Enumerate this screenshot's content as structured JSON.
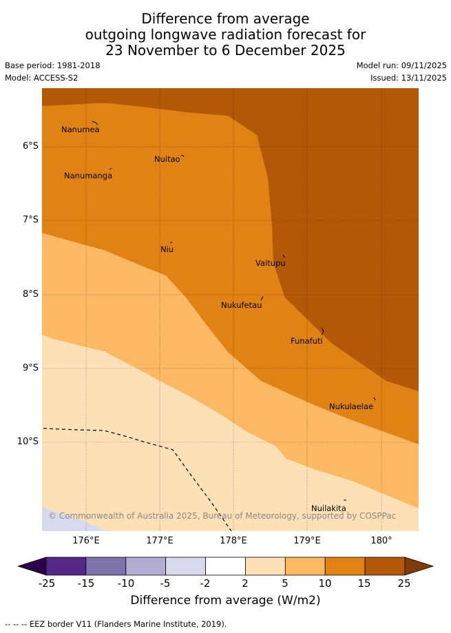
{
  "title": {
    "line1": "Difference from average",
    "line2": "outgoing longwave radiation forecast for",
    "line3": "23 November to 6 December 2025"
  },
  "meta": {
    "base_period": "Base period: 1981-2018",
    "model": "Model: ACCESS-S2",
    "model_run": "Model run: 09/11/2025",
    "issued": "Issued: 13/11/2025"
  },
  "map": {
    "lat_labels": [
      "6°S",
      "7°S",
      "8°S",
      "9°S",
      "10°S"
    ],
    "lon_labels": [
      "176°E",
      "177°E",
      "178°E",
      "179°E",
      "180°"
    ],
    "places": [
      "Nanumea",
      "Nuitao",
      "Nanumanga",
      "Niu",
      "Vaitupu",
      "Nukufetau",
      "Funafuti",
      "Nukulaelae",
      "Nuilakita"
    ],
    "copyright": "© Commonwealth of Australia 2025, Bureau of Meteorology, supported by COSPPac",
    "colors": {
      "c15_25": "#b35806",
      "c10_15": "#e08214",
      "c5_10": "#fdb863",
      "c2_5": "#fee0b6",
      "cm5_m2": "#d8daeb",
      "border": "#000000"
    }
  },
  "colorbar": {
    "ticks": [
      "-25",
      "-15",
      "-10",
      "-5",
      "-2",
      "2",
      "5",
      "10",
      "15",
      "25"
    ],
    "colors": [
      "#2d004b",
      "#542788",
      "#8073ac",
      "#b2abd2",
      "#d8daeb",
      "#ffffff",
      "#fee0b6",
      "#fdb863",
      "#e08214",
      "#b35806",
      "#7f3b08"
    ],
    "label": "Difference from average (W/m2)"
  },
  "legend_note": "--  --  -- EEZ border V11 (Flanders Marine Institute, 2019)."
}
